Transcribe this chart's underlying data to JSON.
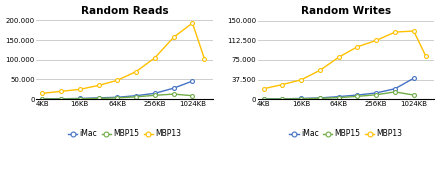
{
  "title_reads": "Random Reads",
  "title_writes": "Random Writes",
  "color_iMac": "#4472C4",
  "color_MBP15": "#70AD47",
  "color_MBP13": "#FFC000",
  "x_kb": [
    4,
    8,
    16,
    32,
    64,
    128,
    256,
    512,
    1024
  ],
  "x_ticks_kb": [
    4,
    16,
    64,
    256,
    1024
  ],
  "x_labels": [
    "4KB",
    "16KB",
    "64KB",
    "256KB",
    "1024KB"
  ],
  "reads_iMac": [
    1000,
    1200,
    2000,
    3500,
    5000,
    9000,
    15000,
    28000,
    46000
  ],
  "reads_MBP15": [
    500,
    800,
    1200,
    2000,
    3500,
    6000,
    10000,
    13000,
    9000
  ],
  "reads_MBP13": [
    15000,
    20000,
    25000,
    35000,
    48000,
    70000,
    105000,
    157000,
    193000,
    102000
  ],
  "writes_iMac": [
    500,
    800,
    1500,
    2500,
    5000,
    8000,
    12000,
    20000,
    40000
  ],
  "writes_MBP15": [
    300,
    500,
    900,
    1800,
    3000,
    5500,
    8500,
    14000,
    8000
  ],
  "writes_MBP13": [
    20000,
    28000,
    37000,
    55000,
    80000,
    100000,
    112000,
    128000,
    130000,
    82000
  ],
  "reads_x_MBP13": [
    4,
    8,
    16,
    32,
    64,
    128,
    256,
    512,
    1024,
    1600
  ],
  "yticks_reads": [
    0,
    50000,
    100000,
    150000,
    200000
  ],
  "ylabels_reads": [
    "0",
    "50.000",
    "100.000",
    "150.000",
    "200.000"
  ],
  "ylim_reads": [
    0,
    210000
  ],
  "yticks_writes": [
    0,
    37500,
    75000,
    112500,
    150000
  ],
  "ylabels_writes": [
    "0",
    "37.500",
    "75.000",
    "112.500",
    "150.000"
  ],
  "ylim_writes": [
    0,
    158000
  ],
  "writes_x_MBP13": [
    4,
    8,
    16,
    32,
    64,
    128,
    256,
    512,
    1024,
    1600
  ]
}
